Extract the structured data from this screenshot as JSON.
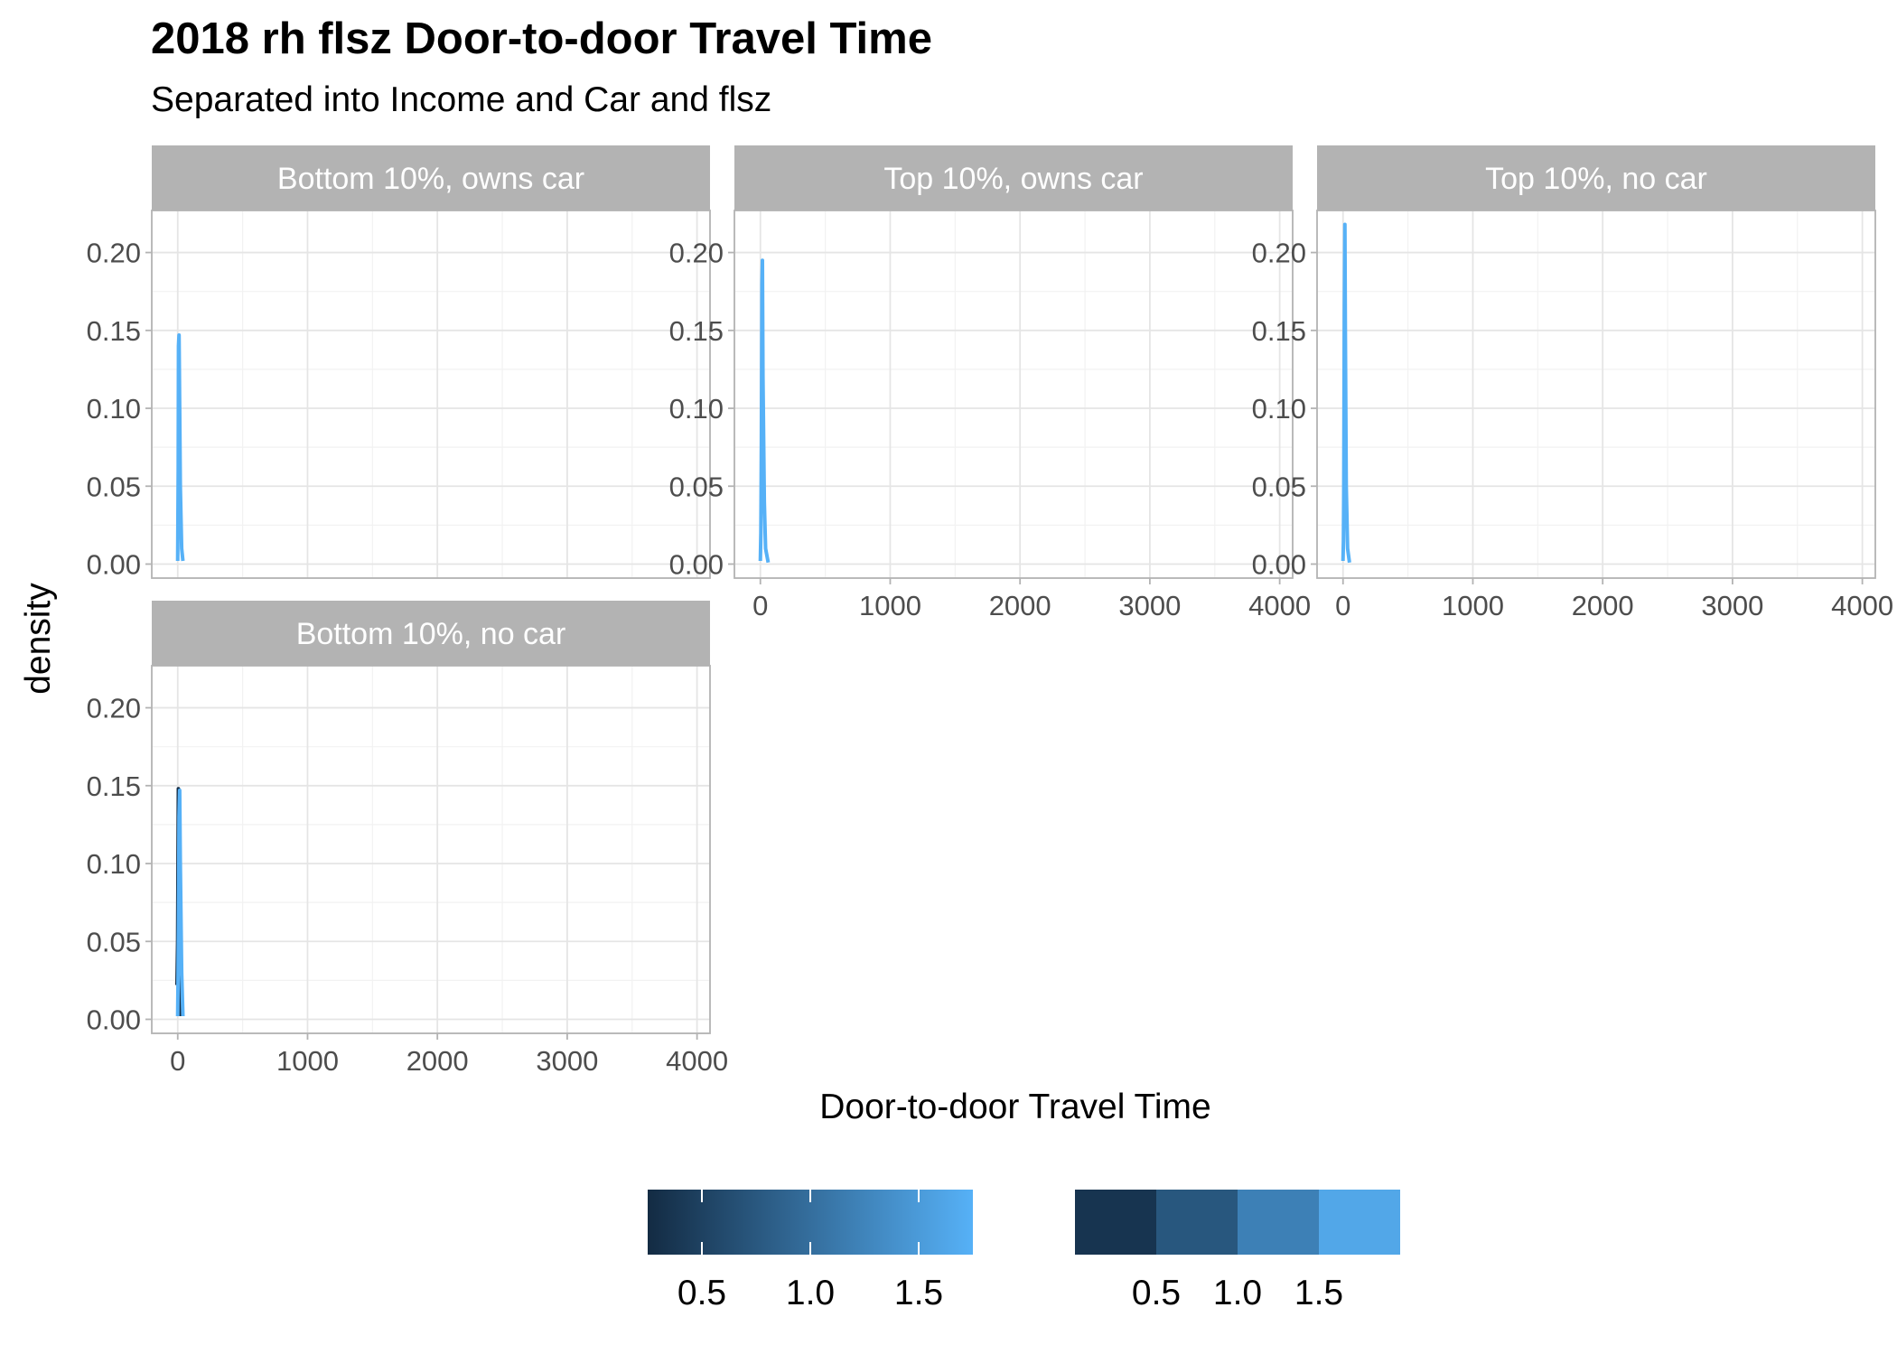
{
  "title": "2018 rh flsz Door-to-door Travel Time",
  "subtitle": "Separated into Income and Car and flsz",
  "chart_data": {
    "type": "line",
    "xlabel": "Door-to-door Travel Time",
    "ylabel": "density",
    "xlim": [
      -200,
      4100
    ],
    "ylim": [
      -0.009,
      0.227
    ],
    "x_ticks": [
      "0",
      "1000",
      "2000",
      "3000",
      "4000"
    ],
    "x_tick_values": [
      0,
      1000,
      2000,
      3000,
      4000
    ],
    "y_ticks": [
      "0.00",
      "0.05",
      "0.10",
      "0.15",
      "0.20"
    ],
    "y_tick_values": [
      0,
      0.05,
      0.1,
      0.15,
      0.2
    ],
    "grid": true,
    "panels": [
      {
        "strip": "Bottom 10%, owns car",
        "series": [
          {
            "color": "#56B1F7",
            "x": [
              0,
              2,
              4,
              6,
              10,
              15,
              20,
              30,
              40
            ],
            "y": [
              0.002,
              0.03,
              0.06,
              0.14,
              0.147,
              0.1,
              0.05,
              0.01,
              0.002
            ]
          }
        ]
      },
      {
        "strip": "Top 10%, owns car",
        "series": [
          {
            "color": "#56B1F7",
            "x": [
              0,
              4,
              8,
              12,
              16,
              20,
              30,
              40,
              60
            ],
            "y": [
              0.002,
              0.02,
              0.08,
              0.18,
              0.195,
              0.12,
              0.04,
              0.01,
              0.001
            ]
          }
        ]
      },
      {
        "strip": "Top 10%, no car",
        "series": [
          {
            "color": "#56B1F7",
            "x": [
              0,
              3,
              6,
              10,
              14,
              18,
              25,
              35,
              50
            ],
            "y": [
              0.002,
              0.015,
              0.05,
              0.16,
              0.218,
              0.15,
              0.05,
              0.01,
              0.001
            ]
          }
        ]
      },
      {
        "strip": "Bottom 10%, no car",
        "series": [
          {
            "color": "#132B43",
            "x": [
              -5,
              0,
              5,
              10,
              15,
              25
            ],
            "y": [
              0.022,
              0.05,
              0.148,
              0.14,
              0.05,
              0.002
            ]
          },
          {
            "color": "#56B1F7",
            "x": [
              0,
              3,
              6,
              10,
              15,
              20,
              30,
              40
            ],
            "y": [
              0.002,
              0.03,
              0.06,
              0.13,
              0.147,
              0.1,
              0.03,
              0.002
            ]
          }
        ]
      }
    ],
    "legend_continuous": {
      "colors": [
        "#132B43",
        "#56B1F7"
      ],
      "range": [
        0.25,
        1.75
      ],
      "labels": [
        "0.5",
        "1.0",
        "1.5"
      ],
      "values": [
        0.5,
        1.0,
        1.5
      ]
    },
    "legend_binned": {
      "colors": [
        "#173450",
        "#28577E",
        "#3D80B6",
        "#52A7E8"
      ],
      "range": [
        0,
        2
      ],
      "labels": [
        "0.5",
        "1.0",
        "1.5"
      ],
      "values": [
        0.5,
        1.0,
        1.5
      ]
    }
  }
}
